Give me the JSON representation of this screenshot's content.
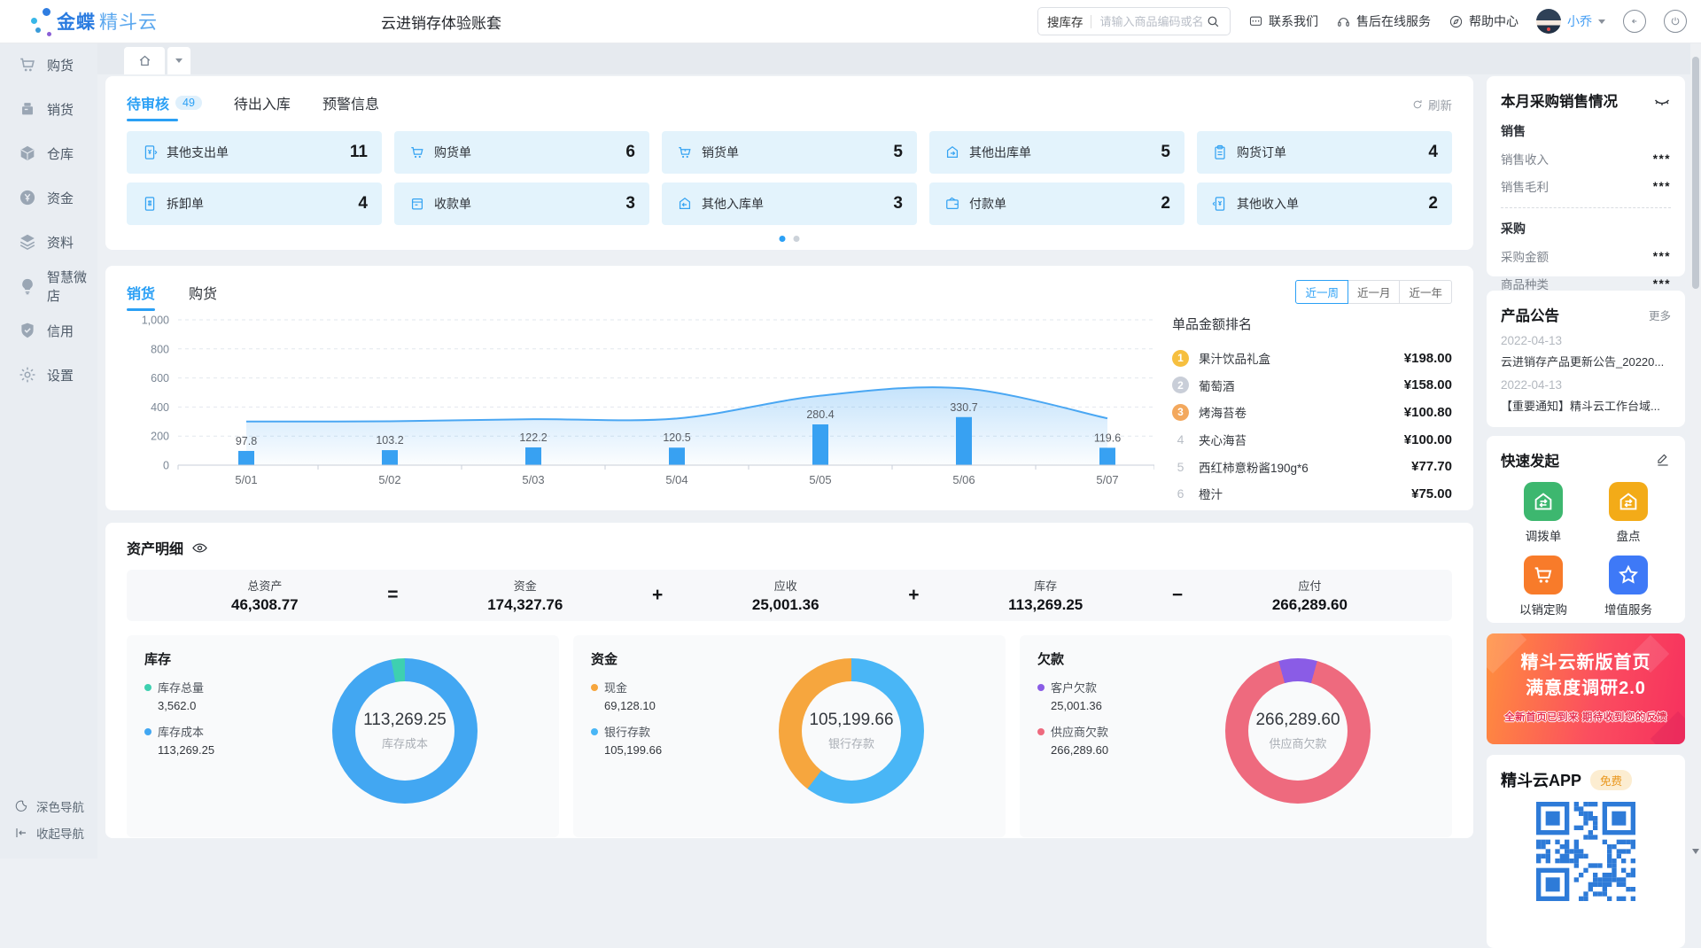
{
  "header": {
    "brand_bold": "金蝶",
    "brand_light": "精斗云",
    "account_title": "云进销存体验账套",
    "search": {
      "scope_label": "搜库存",
      "placeholder": "请输入商品编码或名称"
    },
    "links": [
      {
        "label": "联系我们",
        "icon": "chat-icon"
      },
      {
        "label": "售后在线服务",
        "icon": "headset-icon"
      },
      {
        "label": "帮助中心",
        "icon": "help-compass-icon"
      }
    ],
    "user_name": "小乔"
  },
  "sidebar": {
    "items": [
      {
        "label": "购货",
        "icon": "cart-icon"
      },
      {
        "label": "销货",
        "icon": "sales-register-icon"
      },
      {
        "label": "仓库",
        "icon": "warehouse-cube-icon"
      },
      {
        "label": "资金",
        "icon": "funds-yen-icon"
      },
      {
        "label": "资料",
        "icon": "materials-layers-icon"
      },
      {
        "label": "智慧微店",
        "icon": "smart-store-bulb-icon"
      },
      {
        "label": "信用",
        "icon": "credit-shield-icon"
      },
      {
        "label": "设置",
        "icon": "settings-gear-icon"
      }
    ],
    "footer": [
      {
        "label": "深色导航",
        "icon": "moon-icon"
      },
      {
        "label": "收起导航",
        "icon": "collapse-icon"
      }
    ]
  },
  "todo": {
    "tabs": [
      {
        "label": "待审核",
        "badge": "49"
      },
      {
        "label": "待出入库"
      },
      {
        "label": "预警信息"
      }
    ],
    "refresh_label": "刷新",
    "cards": [
      {
        "label": "其他支出单",
        "count": "11"
      },
      {
        "label": "购货单",
        "count": "6"
      },
      {
        "label": "销货单",
        "count": "5"
      },
      {
        "label": "其他出库单",
        "count": "5"
      },
      {
        "label": "购货订单",
        "count": "4"
      },
      {
        "label": "拆卸单",
        "count": "4"
      },
      {
        "label": "收款单",
        "count": "3"
      },
      {
        "label": "其他入库单",
        "count": "3"
      },
      {
        "label": "付款单",
        "count": "2"
      },
      {
        "label": "其他收入单",
        "count": "2"
      }
    ]
  },
  "trend": {
    "tabs": [
      {
        "label": "销货"
      },
      {
        "label": "购货"
      }
    ],
    "ranges": [
      "近一周",
      "近一月",
      "近一年"
    ],
    "range_active": "近一周"
  },
  "ranking": {
    "title": "单品金额排名",
    "items": [
      {
        "rank": "1",
        "name": "果汁饮品礼盒",
        "price": "¥198.00",
        "medal_color": "#f6bf3f"
      },
      {
        "rank": "2",
        "name": "葡萄酒",
        "price": "¥158.00",
        "medal_color": "#c9ced8"
      },
      {
        "rank": "3",
        "name": "烤海苔卷",
        "price": "¥100.80",
        "medal_color": "#f3a85d"
      },
      {
        "rank": "4",
        "name": "夹心海苔",
        "price": "¥100.00"
      },
      {
        "rank": "5",
        "name": "西红柿意粉酱190g*6",
        "price": "¥77.70"
      },
      {
        "rank": "6",
        "name": "橙汁",
        "price": "¥75.00"
      }
    ]
  },
  "assets": {
    "title": "资产明细",
    "items": [
      {
        "label": "总资产",
        "value": "46,308.77"
      },
      {
        "label": "资金",
        "value": "174,327.76"
      },
      {
        "label": "应收",
        "value": "25,001.36"
      },
      {
        "label": "库存",
        "value": "113,269.25"
      },
      {
        "label": "应付",
        "value": "266,289.60"
      }
    ],
    "operators": [
      "=",
      "+",
      "+",
      "−"
    ]
  },
  "chart_data": [
    {
      "type": "bar",
      "subtype": "line+bar combo, smooth area line above daily bars",
      "title": "销货 近一周",
      "x": [
        "5/01",
        "5/02",
        "5/03",
        "5/04",
        "5/05",
        "5/06",
        "5/07"
      ],
      "bar_values": [
        97.8,
        103.2,
        122.2,
        120.5,
        280.4,
        330.7,
        119.6
      ],
      "line_values": [
        300,
        302,
        316,
        321,
        478,
        528,
        322
      ],
      "ylim": [
        0,
        1000
      ],
      "yticks": [
        0,
        200,
        400,
        600,
        800,
        1000
      ],
      "ytick_labels": [
        "0",
        "200",
        "400",
        "600",
        "800",
        "1,000"
      ],
      "grid": "horizontal-dashed",
      "legend": "none",
      "bar_color": "#38a1f2",
      "line_color": "#4aa7f3"
    },
    {
      "type": "pie",
      "title": "库存",
      "slices": [
        {
          "label": "库存总量",
          "value": 3562.0,
          "display": "3,562.0",
          "color": "#3ed0b0"
        },
        {
          "label": "库存成本",
          "value": 113269.25,
          "display": "113,269.25",
          "color": "#42a7f2"
        }
      ],
      "center": {
        "value": "113,269.25",
        "label": "库存成本"
      }
    },
    {
      "type": "pie",
      "title": "资金",
      "slices": [
        {
          "label": "现金",
          "value": 69128.1,
          "display": "69,128.10",
          "color": "#f6a63e"
        },
        {
          "label": "银行存款",
          "value": 105199.66,
          "display": "105,199.66",
          "color": "#49b6f6"
        }
      ],
      "center": {
        "value": "105,199.66",
        "label": "银行存款"
      }
    },
    {
      "type": "pie",
      "title": "欠款",
      "slices": [
        {
          "label": "客户欠款",
          "value": 25001.36,
          "display": "25,001.36",
          "color": "#8a5ce6"
        },
        {
          "label": "供应商欠款",
          "value": 266289.6,
          "display": "266,289.60",
          "color": "#ee6a7e"
        }
      ],
      "center": {
        "value": "266,289.60",
        "label": "供应商欠款"
      }
    }
  ],
  "right_panel": {
    "monthly": {
      "title": "本月采购销售情况",
      "sections": [
        {
          "header": "销售",
          "rows": [
            {
              "label": "销售收入",
              "value": "***"
            },
            {
              "label": "销售毛利",
              "value": "***"
            }
          ]
        },
        {
          "header": "采购",
          "rows": [
            {
              "label": "采购金额",
              "value": "***"
            },
            {
              "label": "商品种类",
              "value": "***"
            }
          ]
        }
      ]
    },
    "announcements": {
      "title": "产品公告",
      "more_label": "更多",
      "items": [
        {
          "date": "2022-04-13",
          "text": "云进销存产品更新公告_20220..."
        },
        {
          "date": "2022-04-13",
          "text": "【重要通知】精斗云工作台域..."
        }
      ]
    },
    "quick": {
      "title": "快速发起",
      "items": [
        {
          "label": "调拨单",
          "color": "#3db76f"
        },
        {
          "label": "盘点",
          "color": "#f3ab18"
        },
        {
          "label": "以销定购",
          "color": "#f87b2a"
        },
        {
          "label": "增值服务",
          "color": "#3e79f7"
        }
      ]
    },
    "banner": {
      "line1": "精斗云新版首页",
      "line2": "满意度调研2.0",
      "subtitle": "全新首页已到来   期待收到您的反馈"
    },
    "app": {
      "title": "精斗云APP",
      "badge": "免费"
    }
  }
}
